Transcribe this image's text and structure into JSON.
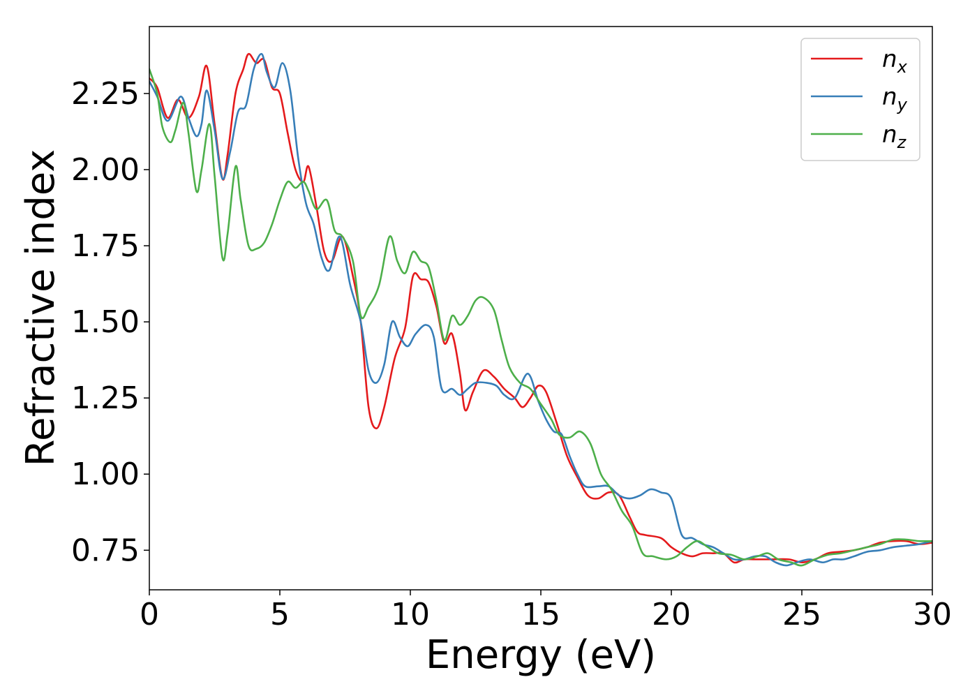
{
  "chart_data": {
    "type": "line",
    "title": "",
    "xlabel": "Energy (eV)",
    "ylabel": "Refractive index",
    "xlim": [
      0,
      30
    ],
    "ylim": [
      0.62,
      2.47
    ],
    "xticks": [
      0,
      5,
      10,
      15,
      20,
      25,
      30
    ],
    "xtick_labels": [
      "0",
      "5",
      "10",
      "15",
      "20",
      "25",
      "30"
    ],
    "yticks": [
      0.75,
      1.0,
      1.25,
      1.5,
      1.75,
      2.0,
      2.25
    ],
    "ytick_labels": [
      "0.75",
      "1.00",
      "1.25",
      "1.50",
      "1.75",
      "2.00",
      "2.25"
    ],
    "grid": false,
    "legend_position": "top-right",
    "series": [
      {
        "name": "n_x",
        "label_base": "n",
        "label_sub": "x",
        "color": "#e41a1c",
        "points": [
          [
            0,
            2.3
          ],
          [
            0.3,
            2.27
          ],
          [
            0.7,
            2.17
          ],
          [
            1.1,
            2.23
          ],
          [
            1.5,
            2.17
          ],
          [
            1.9,
            2.24
          ],
          [
            2.2,
            2.34
          ],
          [
            2.5,
            2.15
          ],
          [
            2.8,
            1.97
          ],
          [
            3.0,
            2.05
          ],
          [
            3.3,
            2.25
          ],
          [
            3.6,
            2.33
          ],
          [
            3.8,
            2.38
          ],
          [
            4.1,
            2.35
          ],
          [
            4.4,
            2.36
          ],
          [
            4.7,
            2.27
          ],
          [
            5.0,
            2.25
          ],
          [
            5.3,
            2.12
          ],
          [
            5.6,
            2.0
          ],
          [
            5.9,
            1.96
          ],
          [
            6.1,
            2.01
          ],
          [
            6.4,
            1.88
          ],
          [
            6.7,
            1.73
          ],
          [
            7.0,
            1.7
          ],
          [
            7.4,
            1.78
          ],
          [
            7.8,
            1.65
          ],
          [
            8.1,
            1.5
          ],
          [
            8.4,
            1.22
          ],
          [
            8.7,
            1.15
          ],
          [
            9.0,
            1.22
          ],
          [
            9.4,
            1.38
          ],
          [
            9.8,
            1.48
          ],
          [
            10.1,
            1.65
          ],
          [
            10.4,
            1.64
          ],
          [
            10.7,
            1.63
          ],
          [
            11.0,
            1.55
          ],
          [
            11.3,
            1.43
          ],
          [
            11.6,
            1.46
          ],
          [
            11.9,
            1.33
          ],
          [
            12.1,
            1.21
          ],
          [
            12.4,
            1.27
          ],
          [
            12.8,
            1.34
          ],
          [
            13.2,
            1.32
          ],
          [
            13.6,
            1.28
          ],
          [
            14.0,
            1.25
          ],
          [
            14.3,
            1.22
          ],
          [
            14.6,
            1.25
          ],
          [
            14.9,
            1.29
          ],
          [
            15.2,
            1.27
          ],
          [
            15.6,
            1.17
          ],
          [
            16.0,
            1.06
          ],
          [
            16.4,
            0.99
          ],
          [
            16.8,
            0.93
          ],
          [
            17.2,
            0.92
          ],
          [
            17.6,
            0.94
          ],
          [
            18.0,
            0.93
          ],
          [
            18.4,
            0.86
          ],
          [
            18.7,
            0.81
          ],
          [
            19.0,
            0.8
          ],
          [
            19.6,
            0.79
          ],
          [
            20.0,
            0.76
          ],
          [
            20.4,
            0.74
          ],
          [
            20.8,
            0.73
          ],
          [
            21.2,
            0.74
          ],
          [
            21.6,
            0.74
          ],
          [
            22.0,
            0.74
          ],
          [
            22.4,
            0.71
          ],
          [
            22.8,
            0.72
          ],
          [
            23.2,
            0.72
          ],
          [
            23.8,
            0.72
          ],
          [
            24.5,
            0.72
          ],
          [
            25.0,
            0.71
          ],
          [
            25.5,
            0.72
          ],
          [
            26.0,
            0.74
          ],
          [
            26.5,
            0.745
          ],
          [
            27.0,
            0.75
          ],
          [
            27.5,
            0.76
          ],
          [
            28.0,
            0.775
          ],
          [
            28.5,
            0.78
          ],
          [
            29.0,
            0.78
          ],
          [
            29.5,
            0.77
          ],
          [
            30.0,
            0.775
          ]
        ]
      },
      {
        "name": "n_y",
        "label_base": "n",
        "label_sub": "y",
        "color": "#377eb8",
        "points": [
          [
            0,
            2.29
          ],
          [
            0.3,
            2.24
          ],
          [
            0.7,
            2.16
          ],
          [
            1.2,
            2.24
          ],
          [
            1.5,
            2.17
          ],
          [
            1.8,
            2.11
          ],
          [
            2.0,
            2.15
          ],
          [
            2.2,
            2.26
          ],
          [
            2.5,
            2.13
          ],
          [
            2.8,
            1.97
          ],
          [
            3.1,
            2.06
          ],
          [
            3.4,
            2.19
          ],
          [
            3.7,
            2.21
          ],
          [
            4.0,
            2.33
          ],
          [
            4.3,
            2.38
          ],
          [
            4.5,
            2.32
          ],
          [
            4.8,
            2.27
          ],
          [
            5.1,
            2.35
          ],
          [
            5.4,
            2.26
          ],
          [
            5.7,
            2.04
          ],
          [
            6.0,
            1.89
          ],
          [
            6.3,
            1.82
          ],
          [
            6.6,
            1.71
          ],
          [
            6.9,
            1.67
          ],
          [
            7.3,
            1.78
          ],
          [
            7.7,
            1.62
          ],
          [
            8.1,
            1.5
          ],
          [
            8.4,
            1.34
          ],
          [
            8.7,
            1.3
          ],
          [
            9.0,
            1.36
          ],
          [
            9.3,
            1.5
          ],
          [
            9.6,
            1.45
          ],
          [
            9.9,
            1.42
          ],
          [
            10.2,
            1.46
          ],
          [
            10.6,
            1.49
          ],
          [
            10.9,
            1.45
          ],
          [
            11.2,
            1.28
          ],
          [
            11.6,
            1.28
          ],
          [
            11.9,
            1.26
          ],
          [
            12.2,
            1.28
          ],
          [
            12.5,
            1.3
          ],
          [
            12.9,
            1.3
          ],
          [
            13.3,
            1.29
          ],
          [
            13.6,
            1.26
          ],
          [
            14.0,
            1.25
          ],
          [
            14.5,
            1.33
          ],
          [
            14.9,
            1.24
          ],
          [
            15.2,
            1.18
          ],
          [
            15.5,
            1.14
          ],
          [
            15.8,
            1.13
          ],
          [
            16.1,
            1.06
          ],
          [
            16.4,
            1.0
          ],
          [
            16.7,
            0.96
          ],
          [
            17.2,
            0.96
          ],
          [
            17.6,
            0.96
          ],
          [
            18.0,
            0.93
          ],
          [
            18.4,
            0.92
          ],
          [
            18.8,
            0.93
          ],
          [
            19.2,
            0.95
          ],
          [
            19.6,
            0.94
          ],
          [
            20.0,
            0.92
          ],
          [
            20.4,
            0.8
          ],
          [
            20.8,
            0.79
          ],
          [
            21.2,
            0.77
          ],
          [
            21.6,
            0.76
          ],
          [
            22.0,
            0.74
          ],
          [
            22.4,
            0.72
          ],
          [
            22.8,
            0.72
          ],
          [
            23.2,
            0.73
          ],
          [
            23.6,
            0.73
          ],
          [
            24.0,
            0.71
          ],
          [
            24.4,
            0.7
          ],
          [
            24.8,
            0.71
          ],
          [
            25.3,
            0.72
          ],
          [
            25.8,
            0.71
          ],
          [
            26.2,
            0.72
          ],
          [
            26.6,
            0.72
          ],
          [
            27.0,
            0.73
          ],
          [
            27.5,
            0.745
          ],
          [
            28.0,
            0.75
          ],
          [
            28.5,
            0.76
          ],
          [
            29.0,
            0.765
          ],
          [
            29.5,
            0.77
          ],
          [
            30.0,
            0.78
          ]
        ]
      },
      {
        "name": "n_z",
        "label_base": "n",
        "label_sub": "z",
        "color": "#4daf4a",
        "points": [
          [
            0,
            2.33
          ],
          [
            0.3,
            2.25
          ],
          [
            0.5,
            2.14
          ],
          [
            0.8,
            2.09
          ],
          [
            1.0,
            2.13
          ],
          [
            1.3,
            2.22
          ],
          [
            1.5,
            2.12
          ],
          [
            1.8,
            1.93
          ],
          [
            2.0,
            2.0
          ],
          [
            2.3,
            2.15
          ],
          [
            2.5,
            1.98
          ],
          [
            2.8,
            1.71
          ],
          [
            3.0,
            1.79
          ],
          [
            3.3,
            2.01
          ],
          [
            3.5,
            1.9
          ],
          [
            3.8,
            1.75
          ],
          [
            4.1,
            1.74
          ],
          [
            4.4,
            1.76
          ],
          [
            4.7,
            1.82
          ],
          [
            5.0,
            1.9
          ],
          [
            5.3,
            1.96
          ],
          [
            5.6,
            1.94
          ],
          [
            5.9,
            1.96
          ],
          [
            6.1,
            1.93
          ],
          [
            6.4,
            1.87
          ],
          [
            6.8,
            1.9
          ],
          [
            7.1,
            1.8
          ],
          [
            7.4,
            1.78
          ],
          [
            7.8,
            1.7
          ],
          [
            8.1,
            1.52
          ],
          [
            8.4,
            1.55
          ],
          [
            8.8,
            1.62
          ],
          [
            9.2,
            1.78
          ],
          [
            9.5,
            1.7
          ],
          [
            9.8,
            1.66
          ],
          [
            10.1,
            1.73
          ],
          [
            10.4,
            1.7
          ],
          [
            10.7,
            1.68
          ],
          [
            11.0,
            1.57
          ],
          [
            11.3,
            1.44
          ],
          [
            11.6,
            1.52
          ],
          [
            11.9,
            1.49
          ],
          [
            12.2,
            1.52
          ],
          [
            12.5,
            1.57
          ],
          [
            12.8,
            1.58
          ],
          [
            13.2,
            1.54
          ],
          [
            13.5,
            1.44
          ],
          [
            13.8,
            1.35
          ],
          [
            14.2,
            1.3
          ],
          [
            14.6,
            1.28
          ],
          [
            15.0,
            1.23
          ],
          [
            15.4,
            1.18
          ],
          [
            15.7,
            1.13
          ],
          [
            16.1,
            1.12
          ],
          [
            16.5,
            1.14
          ],
          [
            16.9,
            1.1
          ],
          [
            17.3,
            1.0
          ],
          [
            17.7,
            0.95
          ],
          [
            18.1,
            0.88
          ],
          [
            18.5,
            0.83
          ],
          [
            18.9,
            0.74
          ],
          [
            19.3,
            0.73
          ],
          [
            19.8,
            0.72
          ],
          [
            20.2,
            0.73
          ],
          [
            20.6,
            0.76
          ],
          [
            21.0,
            0.78
          ],
          [
            21.4,
            0.76
          ],
          [
            21.8,
            0.74
          ],
          [
            22.3,
            0.735
          ],
          [
            22.8,
            0.72
          ],
          [
            23.3,
            0.73
          ],
          [
            23.7,
            0.74
          ],
          [
            24.1,
            0.72
          ],
          [
            24.6,
            0.71
          ],
          [
            25.0,
            0.7
          ],
          [
            25.5,
            0.72
          ],
          [
            26.0,
            0.735
          ],
          [
            26.5,
            0.74
          ],
          [
            27.0,
            0.75
          ],
          [
            27.5,
            0.76
          ],
          [
            28.0,
            0.77
          ],
          [
            28.5,
            0.785
          ],
          [
            29.0,
            0.785
          ],
          [
            29.5,
            0.78
          ],
          [
            30.0,
            0.78
          ]
        ]
      }
    ]
  }
}
